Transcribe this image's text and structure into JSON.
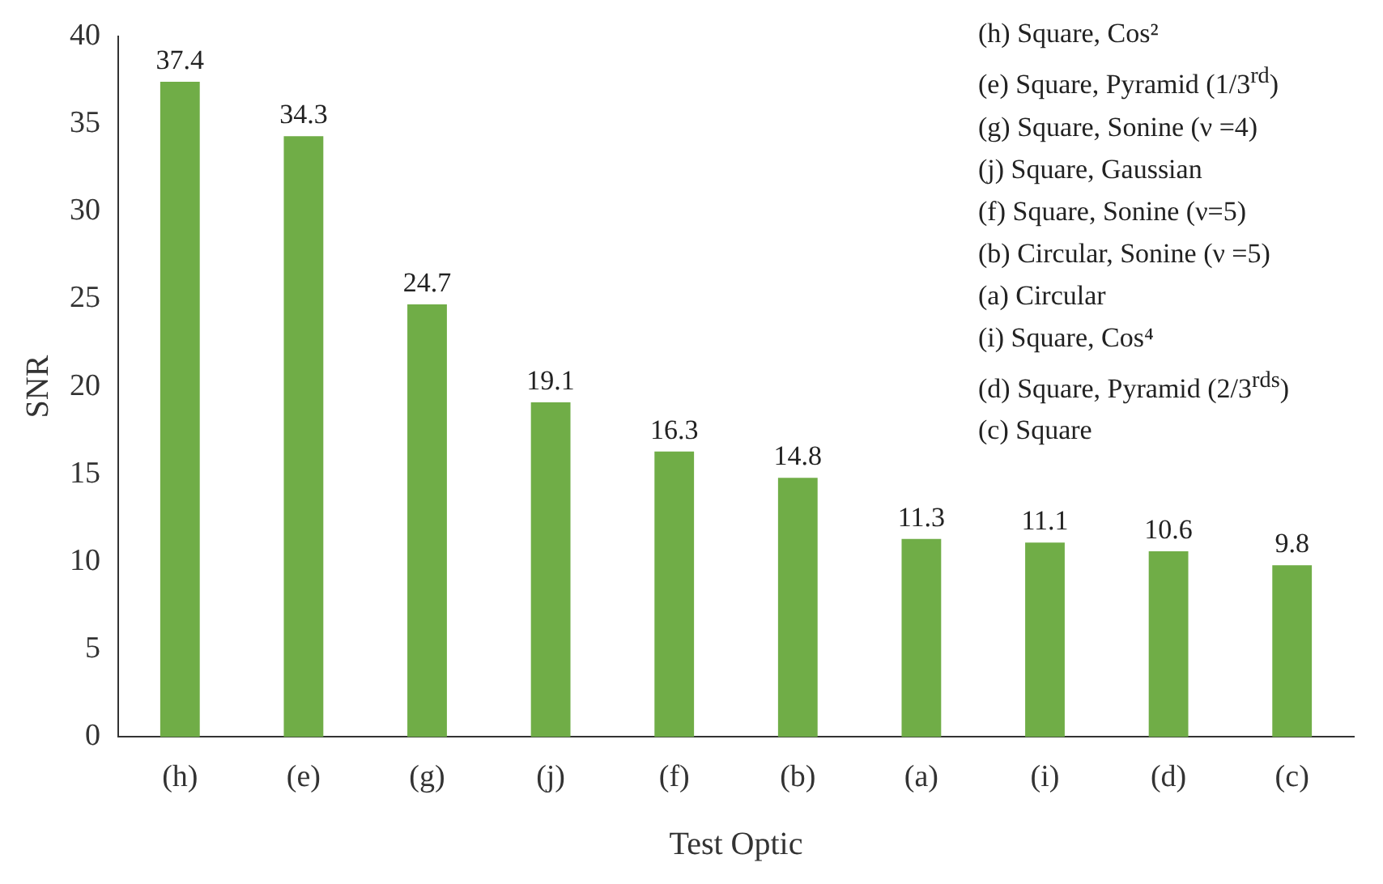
{
  "chart_data": {
    "type": "bar",
    "xlabel": "Test Optic",
    "ylabel": "SNR",
    "categories": [
      "(h)",
      "(e)",
      "(g)",
      "(j)",
      "(f)",
      "(b)",
      "(a)",
      "(i)",
      "(d)",
      "(c)"
    ],
    "values": [
      37.4,
      34.3,
      24.7,
      19.1,
      16.3,
      14.8,
      11.3,
      11.1,
      10.6,
      9.8
    ],
    "color": "#70ad47",
    "ylim": [
      0,
      40
    ],
    "yticks": [
      0,
      5,
      10,
      15,
      20,
      25,
      30,
      35,
      40
    ],
    "grid": false,
    "legend": false,
    "data_labels": true,
    "annotations": [
      "(h) Square, Cos²",
      "(e) Square, Pyramid (1/3$^{rd}$)",
      "(g) Square, Sonine (ν =4)",
      "(j) Square, Gaussian",
      "(f) Square, Sonine (ν=5)",
      "(b) Circular, Sonine (ν =5)",
      "(a) Circular",
      "(i) Square, Cos⁴",
      "(d) Square, Pyramid (2/3$^{rds}$)",
      "(c) Square"
    ]
  }
}
